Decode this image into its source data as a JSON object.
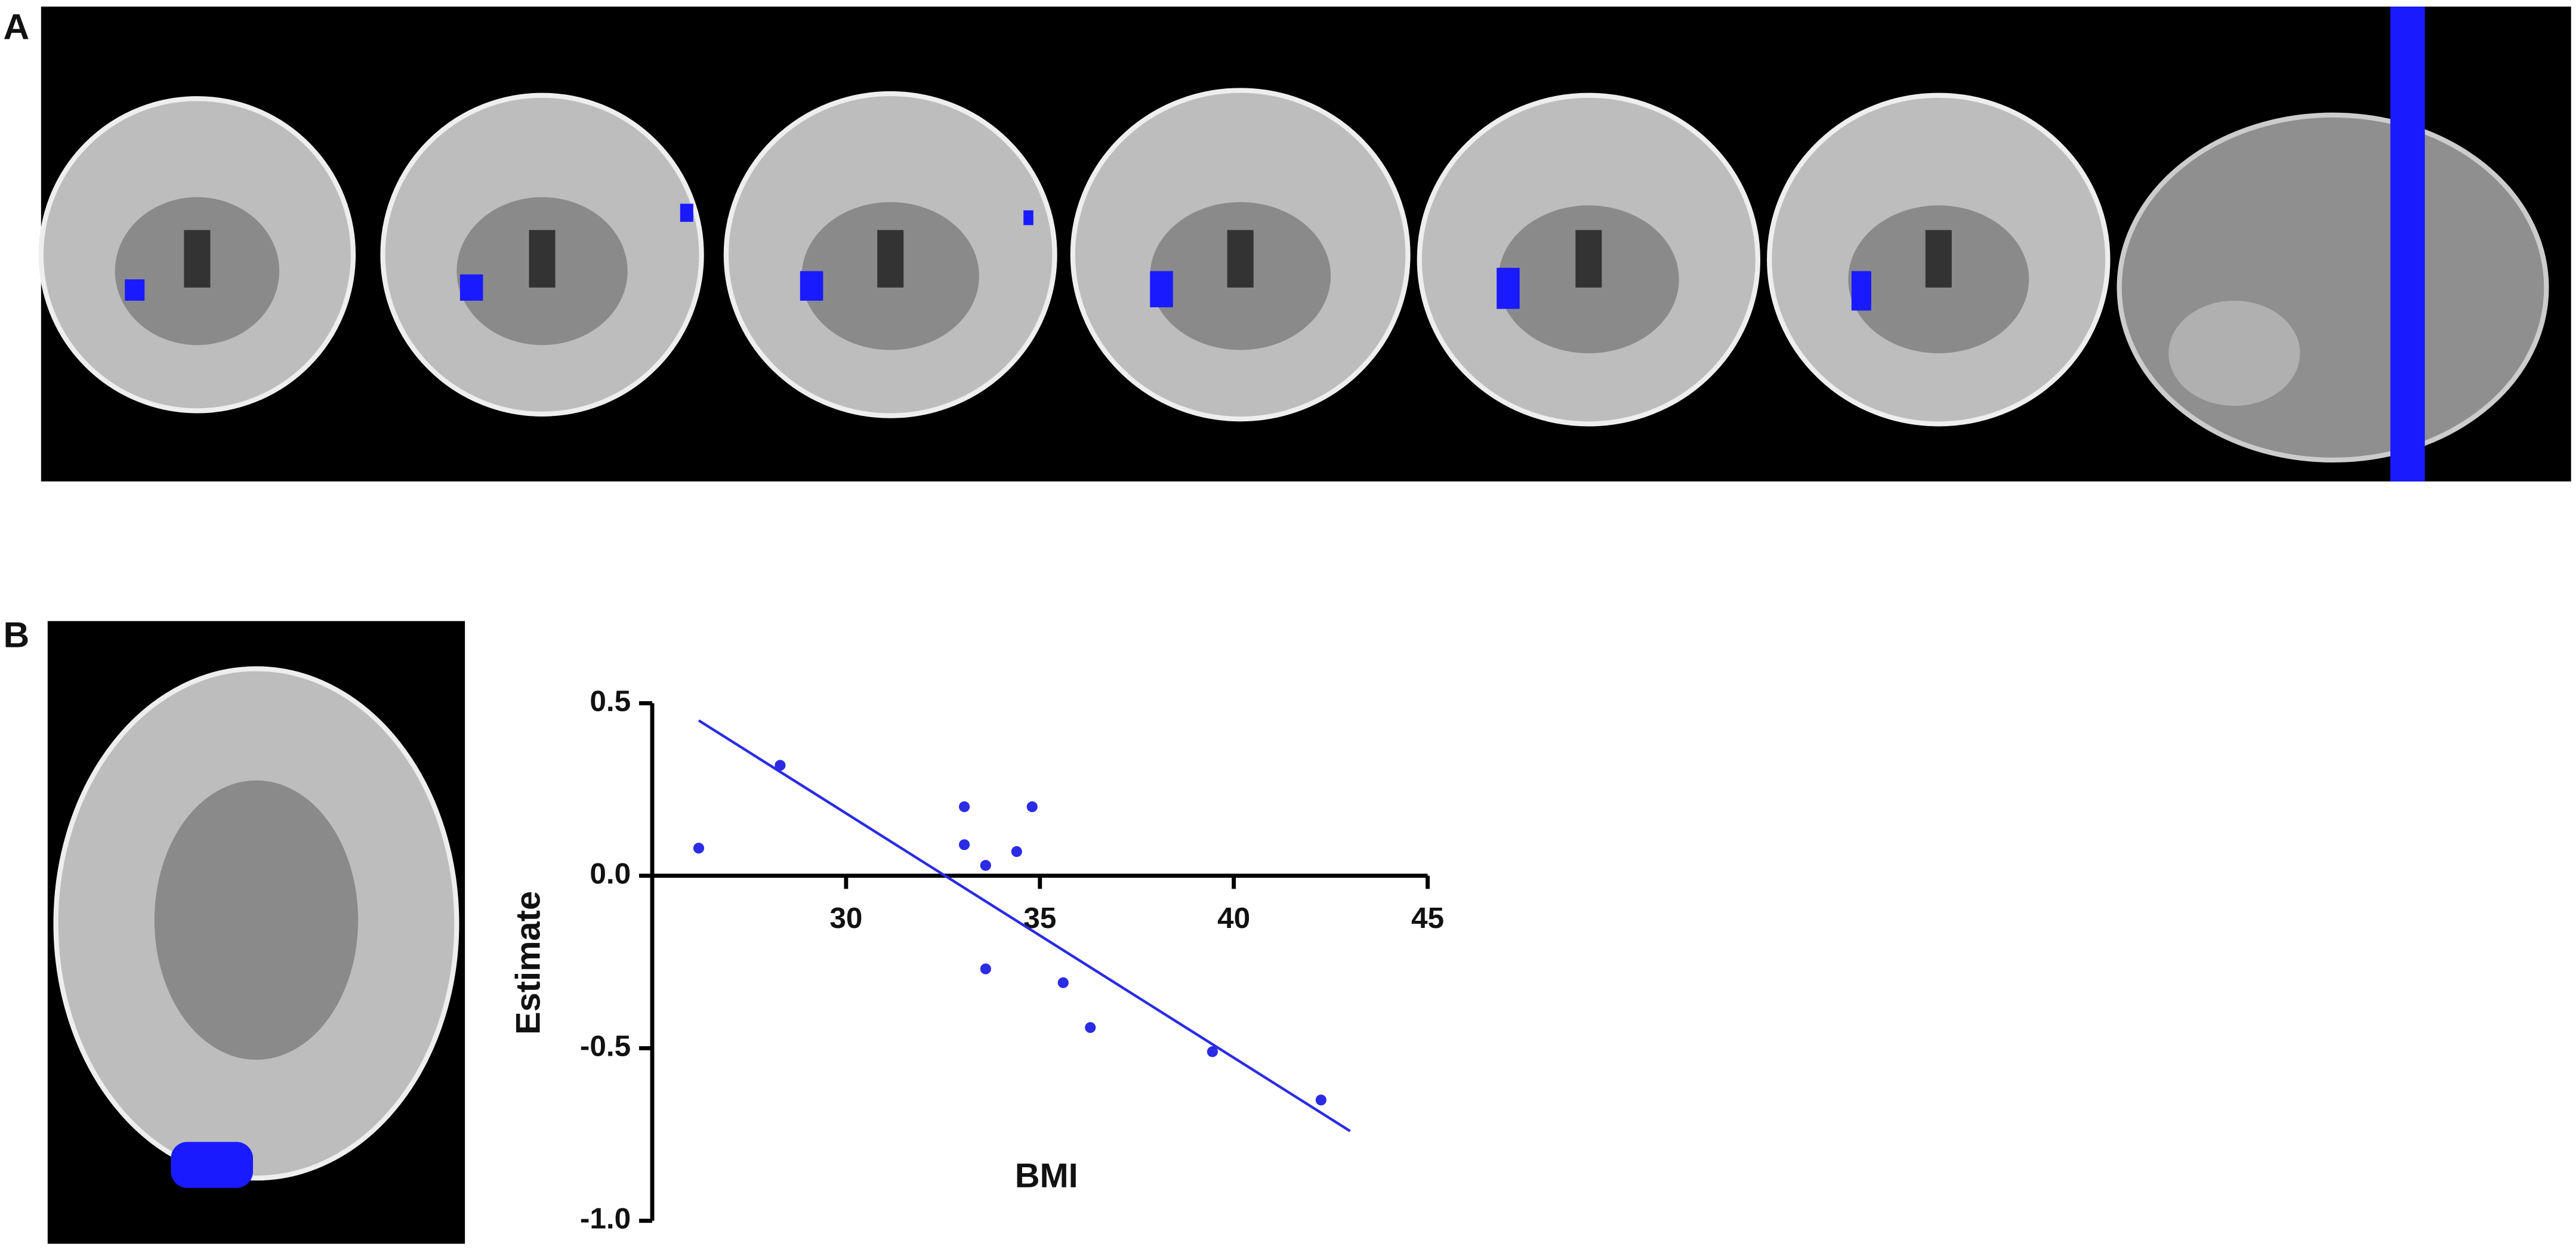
{
  "panel_labels": [
    "A",
    "B"
  ],
  "chart_data": {
    "type": "scatter",
    "x_label": "BMI",
    "y_label": "Estimate",
    "x": [
      26.2,
      28.3,
      33.05,
      34.8,
      33.05,
      33.6,
      34.4,
      33.6,
      35.6,
      36.3,
      39.45,
      42.25
    ],
    "values": [
      0.08,
      0.32,
      0.2,
      0.2,
      0.09,
      0.03,
      0.07,
      -0.27,
      -0.31,
      -0.44,
      -0.51,
      -0.65
    ],
    "color": "#2b2be6",
    "trend": {
      "x": [
        26.2,
        43.0
      ],
      "y": [
        0.45,
        -0.74
      ],
      "color": "#2b2be6"
    },
    "xlim": [
      25,
      45
    ],
    "xticks": [
      30,
      35,
      40,
      45
    ],
    "ylim": [
      -1,
      0.5
    ],
    "yticks": [
      0.5,
      {
        "value": 0,
        "label": "0.0"
      },
      -0.5,
      {
        "value": -1,
        "label": "-1.0"
      }
    ]
  }
}
